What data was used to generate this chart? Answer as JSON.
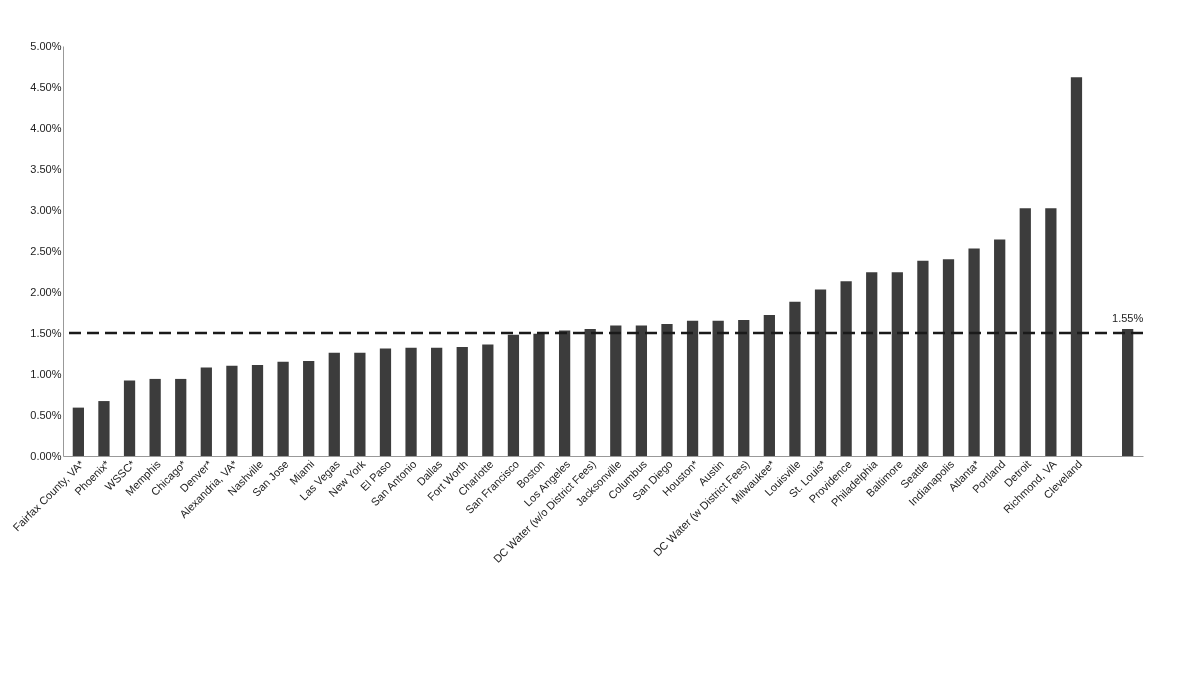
{
  "chart_data": {
    "type": "bar",
    "categories": [
      "Fairfax County, VA*",
      "Phoenix*",
      "WSSC*",
      "Memphis",
      "Chicago*",
      "Denver*",
      "Alexandria, VA*",
      "Nashville",
      "San Jose",
      "Miami",
      "Las Vegas",
      "New York",
      "El Paso",
      "San Antonio",
      "Dallas",
      "Fort Worth",
      "Charlotte",
      "San Francisco",
      "Boston",
      "Los Angeles",
      "DC Water (w/o District Fees)",
      "Jacksonville",
      "Columbus",
      "San Diego",
      "Houston*",
      "Austin",
      "DC Water (w District Fees)",
      "Milwaukee*",
      "Louisville",
      "St. Louis*",
      "Providence",
      "Philadelphia",
      "Baltimore",
      "Seattle",
      "Indianapolis",
      "Atlanta*",
      "Portland",
      "Detroit",
      "Richmond, VA",
      "Cleveland",
      null,
      null
    ],
    "values": [
      0.59,
      0.67,
      0.92,
      0.94,
      0.94,
      1.08,
      1.1,
      1.11,
      1.15,
      1.16,
      1.26,
      1.26,
      1.31,
      1.32,
      1.32,
      1.33,
      1.36,
      1.48,
      1.49,
      1.53,
      1.55,
      1.59,
      1.59,
      1.61,
      1.65,
      1.65,
      1.66,
      1.72,
      1.88,
      2.03,
      2.13,
      2.24,
      2.24,
      2.38,
      2.4,
      2.53,
      2.64,
      3.02,
      3.02,
      4.62,
      null,
      1.55
    ],
    "value_labels": [
      null,
      null,
      null,
      null,
      null,
      null,
      null,
      null,
      null,
      null,
      null,
      null,
      null,
      null,
      null,
      null,
      null,
      null,
      null,
      null,
      null,
      null,
      null,
      null,
      null,
      null,
      null,
      null,
      null,
      null,
      null,
      null,
      null,
      null,
      null,
      null,
      null,
      null,
      null,
      null,
      null,
      "1.55%"
    ],
    "color": "#3c3c3c",
    "ylim": [
      0,
      5
    ],
    "yticks": [
      {
        "value": 0,
        "label": "0.00%"
      },
      {
        "value": 0.5,
        "label": "0.50%"
      },
      {
        "value": 1,
        "label": "1.00%"
      },
      {
        "value": 1.5,
        "label": "1.50%"
      },
      {
        "value": 2,
        "label": "2.00%"
      },
      {
        "value": 2.5,
        "label": "2.50%"
      },
      {
        "value": 3,
        "label": "3.00%"
      },
      {
        "value": 3.5,
        "label": "3.50%"
      },
      {
        "value": 4,
        "label": "4.00%"
      },
      {
        "value": 4.5,
        "label": "4.50%"
      },
      {
        "value": 5,
        "label": "5.00%"
      }
    ],
    "ref_lines": [
      {
        "axis": "y",
        "value": 1.5,
        "color": "#1a1a1a",
        "line_style": "dashed"
      }
    ],
    "grid": false
  }
}
